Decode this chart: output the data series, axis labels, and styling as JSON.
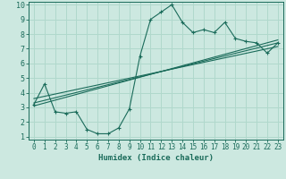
{
  "xlabel": "Humidex (Indice chaleur)",
  "xlim": [
    -0.5,
    23.5
  ],
  "ylim": [
    0.8,
    10.2
  ],
  "xticks": [
    0,
    1,
    2,
    3,
    4,
    5,
    6,
    7,
    8,
    9,
    10,
    11,
    12,
    13,
    14,
    15,
    16,
    17,
    18,
    19,
    20,
    21,
    22,
    23
  ],
  "yticks": [
    1,
    2,
    3,
    4,
    5,
    6,
    7,
    8,
    9,
    10
  ],
  "bg_color": "#cce8e0",
  "line_color": "#1a6b5a",
  "grid_color": "#b0d8cc",
  "curve1_x": [
    0,
    1,
    2,
    3,
    4,
    5,
    6,
    7,
    8,
    9,
    10,
    11,
    12,
    13,
    14,
    15,
    16,
    17,
    18,
    19,
    20,
    21,
    22,
    23
  ],
  "curve1_y": [
    3.2,
    4.6,
    2.7,
    2.6,
    2.7,
    1.5,
    1.2,
    1.2,
    1.6,
    2.9,
    6.5,
    9.0,
    9.5,
    10.0,
    8.8,
    8.1,
    8.3,
    8.1,
    8.8,
    7.7,
    7.5,
    7.4,
    6.7,
    7.4
  ],
  "line1_x": [
    0,
    23
  ],
  "line1_y": [
    3.1,
    7.6
  ],
  "line2_x": [
    0,
    23
  ],
  "line2_y": [
    3.3,
    7.4
  ],
  "line3_x": [
    0,
    23
  ],
  "line3_y": [
    3.6,
    7.15
  ]
}
